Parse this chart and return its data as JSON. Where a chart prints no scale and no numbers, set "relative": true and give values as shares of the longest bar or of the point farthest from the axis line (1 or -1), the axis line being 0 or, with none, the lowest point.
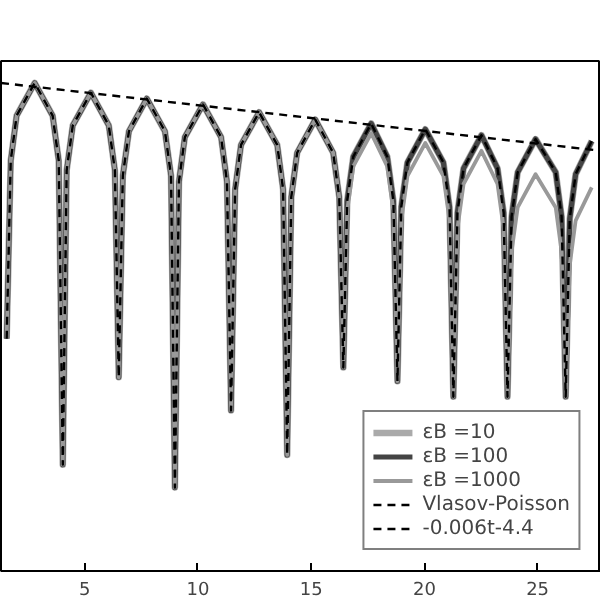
{
  "chart_data": {
    "type": "line",
    "relative": true,
    "legend": "bottom right",
    "grid": false,
    "marker": "none",
    "x": [
      1.55,
      1.73,
      1.99,
      2.79,
      3.58,
      3.85,
      4.03,
      4.2,
      4.47,
      5.27,
      6.06,
      6.33,
      6.5,
      6.68,
      6.95,
      7.74,
      8.54,
      8.81,
      8.98,
      9.16,
      9.42,
      10.22,
      11.02,
      11.28,
      11.46,
      11.64,
      11.9,
      12.7,
      13.5,
      13.76,
      13.94,
      14.12,
      14.38,
      15.18,
      15.97,
      16.24,
      16.42,
      16.59,
      16.86,
      17.65,
      18.36,
      18.63,
      18.81,
      18.98,
      19.25,
      20.04,
      20.84,
      21.11,
      21.28,
      21.46,
      21.73,
      22.52,
      23.23,
      23.5,
      23.67,
      23.85,
      24.12,
      24.91,
      25.8,
      26.06,
      26.24,
      26.42,
      26.68,
      27.39
    ],
    "xlim": [
      1.3,
      27.8
    ],
    "xticks": [
      5,
      10,
      15,
      20,
      25
    ],
    "series": [
      {
        "name": "εB =10",
        "color": "#aaaaaa",
        "line_style": "solid",
        "values": [
          0.476,
          0.841,
          0.933,
          1.0,
          0.933,
          0.841,
          0.218,
          0.821,
          0.913,
          0.98,
          0.913,
          0.821,
          0.397,
          0.81,
          0.901,
          0.968,
          0.901,
          0.81,
          0.171,
          0.798,
          0.889,
          0.956,
          0.889,
          0.798,
          0.329,
          0.782,
          0.873,
          0.94,
          0.873,
          0.782,
          0.238,
          0.766,
          0.857,
          0.925,
          0.857,
          0.766,
          0.417,
          0.758,
          0.849,
          0.917,
          0.849,
          0.758,
          0.389,
          0.746,
          0.837,
          0.905,
          0.837,
          0.746,
          0.357,
          0.734,
          0.825,
          0.893,
          0.825,
          0.734,
          0.357,
          0.726,
          0.817,
          0.885,
          0.817,
          0.726,
          0.357,
          0.722,
          0.813,
          0.881
        ]
      },
      {
        "name": "εB =100",
        "color": "#444444",
        "line_style": "solid",
        "values": [
          0.476,
          0.841,
          0.933,
          1.0,
          0.933,
          0.841,
          0.218,
          0.821,
          0.913,
          0.98,
          0.913,
          0.821,
          0.397,
          0.81,
          0.901,
          0.968,
          0.901,
          0.81,
          0.171,
          0.798,
          0.889,
          0.956,
          0.889,
          0.798,
          0.329,
          0.782,
          0.873,
          0.94,
          0.873,
          0.782,
          0.238,
          0.766,
          0.857,
          0.925,
          0.857,
          0.766,
          0.417,
          0.758,
          0.849,
          0.917,
          0.849,
          0.758,
          0.389,
          0.746,
          0.837,
          0.905,
          0.837,
          0.746,
          0.357,
          0.734,
          0.825,
          0.893,
          0.825,
          0.734,
          0.357,
          0.726,
          0.817,
          0.885,
          0.817,
          0.726,
          0.357,
          0.722,
          0.813,
          0.881
        ]
      },
      {
        "name": "εB =1000",
        "color": "#999999",
        "line_style": "solid",
        "values": [
          0.476,
          0.841,
          0.933,
          1.0,
          0.933,
          0.841,
          0.218,
          0.821,
          0.913,
          0.98,
          0.913,
          0.821,
          0.397,
          0.81,
          0.901,
          0.968,
          0.901,
          0.81,
          0.171,
          0.798,
          0.889,
          0.956,
          0.889,
          0.798,
          0.329,
          0.782,
          0.873,
          0.94,
          0.873,
          0.782,
          0.238,
          0.766,
          0.857,
          0.925,
          0.857,
          0.766,
          0.417,
          0.738,
          0.829,
          0.897,
          0.829,
          0.738,
          0.389,
          0.718,
          0.809,
          0.877,
          0.809,
          0.718,
          0.357,
          0.702,
          0.793,
          0.861,
          0.793,
          0.702,
          0.357,
          0.654,
          0.745,
          0.813,
          0.745,
          0.654,
          0.357,
          0.627,
          0.718,
          0.786
        ]
      },
      {
        "name": "Vlasov-Poisson",
        "color": "#000000",
        "line_style": "dashed",
        "values": [
          0.476,
          0.841,
          0.933,
          1.0,
          0.933,
          0.841,
          0.218,
          0.821,
          0.913,
          0.98,
          0.913,
          0.821,
          0.397,
          0.81,
          0.901,
          0.968,
          0.901,
          0.81,
          0.171,
          0.798,
          0.889,
          0.956,
          0.889,
          0.798,
          0.329,
          0.782,
          0.873,
          0.94,
          0.873,
          0.782,
          0.238,
          0.766,
          0.857,
          0.925,
          0.857,
          0.766,
          0.417,
          0.758,
          0.849,
          0.917,
          0.849,
          0.758,
          0.389,
          0.746,
          0.837,
          0.905,
          0.837,
          0.746,
          0.357,
          0.734,
          0.825,
          0.893,
          0.825,
          0.734,
          0.357,
          0.726,
          0.817,
          0.885,
          0.817,
          0.726,
          0.357,
          0.722,
          0.813,
          0.881
        ]
      },
      {
        "name": "-0.006t-4.4",
        "color": "#000000",
        "line_style": "dashed",
        "x": [
          1.3,
          27.8
        ],
        "values": [
          1.0,
          0.861
        ]
      }
    ]
  }
}
